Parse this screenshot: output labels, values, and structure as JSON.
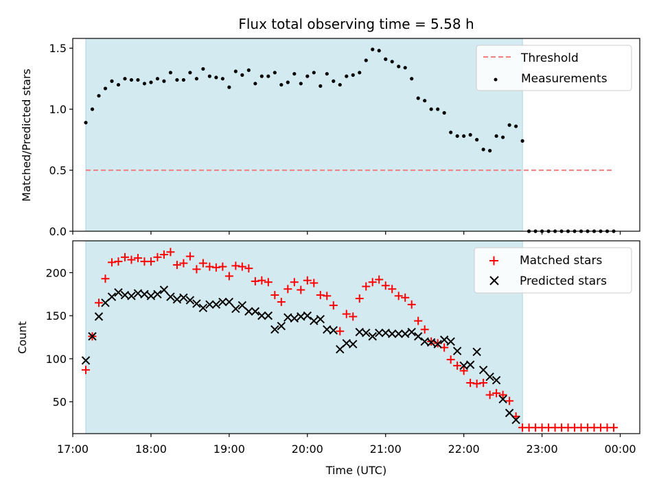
{
  "chart_data": [
    {
      "type": "scatter",
      "title": "Flux total observing time = 5.58 h",
      "xlabel": "",
      "ylabel": "Matched/Predicted stars",
      "xlim": [
        "17:00",
        "00:15"
      ],
      "ylim": [
        0,
        1.58
      ],
      "yticks": [
        "0.0",
        "0.5",
        "1.0",
        "1.5"
      ],
      "grid": false,
      "legend": "top-right",
      "shaded_interval": {
        "start": "17:10",
        "end": "22:45",
        "color": "#d3eaf0"
      },
      "series": [
        {
          "name": "Threshold",
          "style": "dashed-line",
          "color": "#f08080",
          "x": [
            "17:10",
            "23:55"
          ],
          "y": [
            0.5,
            0.5
          ]
        },
        {
          "name": "Measurements",
          "style": "dot",
          "color": "#000000",
          "x": [
            "17:10",
            "17:15",
            "17:20",
            "17:25",
            "17:30",
            "17:35",
            "17:40",
            "17:45",
            "17:50",
            "17:55",
            "18:00",
            "18:05",
            "18:10",
            "18:15",
            "18:20",
            "18:25",
            "18:30",
            "18:35",
            "18:40",
            "18:45",
            "18:50",
            "18:55",
            "19:00",
            "19:05",
            "19:10",
            "19:15",
            "19:20",
            "19:25",
            "19:30",
            "19:35",
            "19:40",
            "19:45",
            "19:50",
            "19:55",
            "20:00",
            "20:05",
            "20:10",
            "20:15",
            "20:20",
            "20:25",
            "20:30",
            "20:35",
            "20:40",
            "20:45",
            "20:50",
            "20:55",
            "21:00",
            "21:05",
            "21:10",
            "21:15",
            "21:20",
            "21:25",
            "21:30",
            "21:35",
            "21:40",
            "21:45",
            "21:50",
            "21:55",
            "22:00",
            "22:05",
            "22:10",
            "22:15",
            "22:20",
            "22:25",
            "22:30",
            "22:35",
            "22:40",
            "22:45",
            "22:50",
            "22:55",
            "23:00",
            "23:05",
            "23:10",
            "23:15",
            "23:20",
            "23:25",
            "23:30",
            "23:35",
            "23:40",
            "23:45",
            "23:50",
            "23:55"
          ],
          "y": [
            0.89,
            1.0,
            1.11,
            1.17,
            1.23,
            1.2,
            1.25,
            1.24,
            1.24,
            1.21,
            1.22,
            1.25,
            1.23,
            1.3,
            1.24,
            1.24,
            1.3,
            1.25,
            1.33,
            1.27,
            1.26,
            1.25,
            1.18,
            1.31,
            1.28,
            1.32,
            1.21,
            1.27,
            1.27,
            1.3,
            1.2,
            1.22,
            1.29,
            1.21,
            1.27,
            1.3,
            1.19,
            1.29,
            1.23,
            1.2,
            1.27,
            1.28,
            1.3,
            1.4,
            1.49,
            1.48,
            1.41,
            1.39,
            1.35,
            1.34,
            1.25,
            1.09,
            1.07,
            1.0,
            1.0,
            0.97,
            0.81,
            0.78,
            0.78,
            0.79,
            0.75,
            0.67,
            0.66,
            0.78,
            0.77,
            0.87,
            0.86,
            0.74,
            0.0,
            0.0,
            0.0,
            0.0,
            0.0,
            0.0,
            0.0,
            0.0,
            0.0,
            0.0,
            0.0,
            0.0,
            0.0,
            0.0
          ]
        }
      ]
    },
    {
      "type": "scatter",
      "title": "",
      "xlabel": "Time (UTC)",
      "ylabel": "Count",
      "xlim": [
        "17:00",
        "00:15"
      ],
      "ylim": [
        13,
        237
      ],
      "xticks": [
        "17:00",
        "18:00",
        "19:00",
        "20:00",
        "21:00",
        "22:00",
        "23:00",
        "00:00"
      ],
      "yticks": [
        "50",
        "100",
        "150",
        "200"
      ],
      "grid": false,
      "legend": "top-right",
      "shaded_interval": {
        "start": "17:10",
        "end": "22:45",
        "color": "#d3eaf0"
      },
      "series": [
        {
          "name": "Matched stars",
          "style": "plus",
          "color": "#ff0000",
          "x": [
            "17:10",
            "17:15",
            "17:20",
            "17:25",
            "17:30",
            "17:35",
            "17:40",
            "17:45",
            "17:50",
            "17:55",
            "18:00",
            "18:05",
            "18:10",
            "18:15",
            "18:20",
            "18:25",
            "18:30",
            "18:35",
            "18:40",
            "18:45",
            "18:50",
            "18:55",
            "19:00",
            "19:05",
            "19:10",
            "19:15",
            "19:20",
            "19:25",
            "19:30",
            "19:35",
            "19:40",
            "19:45",
            "19:50",
            "19:55",
            "20:00",
            "20:05",
            "20:10",
            "20:15",
            "20:20",
            "20:25",
            "20:30",
            "20:35",
            "20:40",
            "20:45",
            "20:50",
            "20:55",
            "21:00",
            "21:05",
            "21:10",
            "21:15",
            "21:20",
            "21:25",
            "21:30",
            "21:35",
            "21:40",
            "21:45",
            "21:50",
            "21:55",
            "22:00",
            "22:05",
            "22:10",
            "22:15",
            "22:20",
            "22:25",
            "22:30",
            "22:35",
            "22:40",
            "22:45",
            "22:50",
            "22:55",
            "23:00",
            "23:05",
            "23:10",
            "23:15",
            "23:20",
            "23:25",
            "23:30",
            "23:35",
            "23:40",
            "23:45",
            "23:50",
            "23:55"
          ],
          "y": [
            87,
            126,
            165,
            193,
            212,
            213,
            218,
            215,
            217,
            213,
            213,
            218,
            221,
            224,
            209,
            211,
            219,
            204,
            211,
            207,
            206,
            207,
            196,
            208,
            207,
            205,
            190,
            191,
            189,
            174,
            166,
            181,
            189,
            180,
            191,
            188,
            174,
            173,
            162,
            132,
            152,
            149,
            170,
            184,
            189,
            192,
            185,
            181,
            173,
            171,
            163,
            144,
            134,
            120,
            118,
            113,
            99,
            92,
            86,
            72,
            71,
            72,
            58,
            60,
            58,
            51,
            33,
            20,
            20,
            20,
            20,
            20,
            20,
            20,
            20,
            20,
            20,
            20,
            20,
            20,
            20,
            20
          ]
        },
        {
          "name": "Predicted stars",
          "style": "x",
          "color": "#000000",
          "x": [
            "17:10",
            "17:15",
            "17:20",
            "17:25",
            "17:30",
            "17:35",
            "17:40",
            "17:45",
            "17:50",
            "17:55",
            "18:00",
            "18:05",
            "18:10",
            "18:15",
            "18:20",
            "18:25",
            "18:30",
            "18:35",
            "18:40",
            "18:45",
            "18:50",
            "18:55",
            "19:00",
            "19:05",
            "19:10",
            "19:15",
            "19:20",
            "19:25",
            "19:30",
            "19:35",
            "19:40",
            "19:45",
            "19:50",
            "19:55",
            "20:00",
            "20:05",
            "20:10",
            "20:15",
            "20:20",
            "20:25",
            "20:30",
            "20:35",
            "20:40",
            "20:45",
            "20:50",
            "20:55",
            "21:00",
            "21:05",
            "21:10",
            "21:15",
            "21:20",
            "21:25",
            "21:30",
            "21:35",
            "21:40",
            "21:45",
            "21:50",
            "21:55",
            "22:00",
            "22:05",
            "22:10",
            "22:15",
            "22:20",
            "22:25",
            "22:30",
            "22:35",
            "22:40"
          ],
          "y": [
            98,
            126,
            149,
            165,
            172,
            177,
            174,
            173,
            176,
            175,
            173,
            175,
            180,
            172,
            169,
            171,
            168,
            164,
            159,
            163,
            163,
            166,
            166,
            158,
            162,
            155,
            155,
            150,
            150,
            134,
            138,
            148,
            147,
            149,
            150,
            144,
            146,
            134,
            133,
            111,
            118,
            117,
            131,
            130,
            126,
            130,
            130,
            129,
            129,
            129,
            131,
            126,
            120,
            119,
            117,
            122,
            120,
            109,
            92,
            93,
            108,
            87,
            79,
            75,
            53,
            37,
            29
          ]
        }
      ]
    }
  ]
}
